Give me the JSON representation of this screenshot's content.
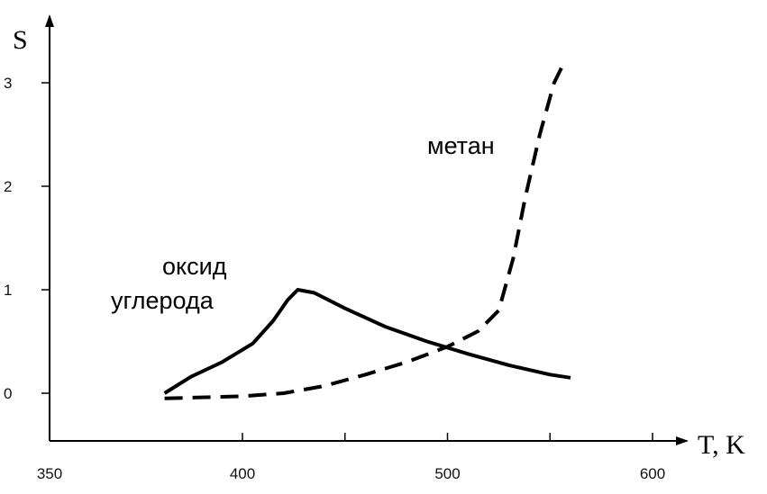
{
  "chart_data": {
    "type": "line",
    "title": "",
    "xlabel": "T, K",
    "ylabel": "S",
    "xlim": [
      350,
      650
    ],
    "ylim": [
      -0.5,
      3.5
    ],
    "x_ticks": [
      350,
      400,
      500,
      600
    ],
    "x_minor_ticks": [
      400,
      450,
      500,
      550,
      600
    ],
    "y_ticks": [
      0,
      1,
      2,
      3
    ],
    "grid": false,
    "legend": "none",
    "series": [
      {
        "name": "оксид углерода",
        "style": "solid",
        "color": "#000000",
        "x": [
          362,
          375,
          390,
          405,
          415,
          422,
          427,
          435,
          450,
          470,
          490,
          510,
          530,
          550,
          560
        ],
        "y": [
          0.0,
          0.16,
          0.3,
          0.48,
          0.7,
          0.9,
          1.0,
          0.97,
          0.82,
          0.64,
          0.5,
          0.38,
          0.27,
          0.18,
          0.15
        ]
      },
      {
        "name": "метан",
        "style": "dashed",
        "color": "#000000",
        "x": [
          362,
          380,
          400,
          420,
          440,
          460,
          480,
          500,
          515,
          525,
          532,
          538,
          545,
          552,
          557
        ],
        "y": [
          -0.05,
          -0.04,
          -0.03,
          0.0,
          0.07,
          0.18,
          0.3,
          0.45,
          0.6,
          0.8,
          1.3,
          1.9,
          2.5,
          3.0,
          3.2
        ]
      }
    ],
    "annotations": [
      {
        "text": "метан",
        "series": "метан"
      },
      {
        "text": "оксид",
        "series": "оксид углерода"
      },
      {
        "text": "углерода",
        "series": "оксид углерода"
      }
    ]
  }
}
